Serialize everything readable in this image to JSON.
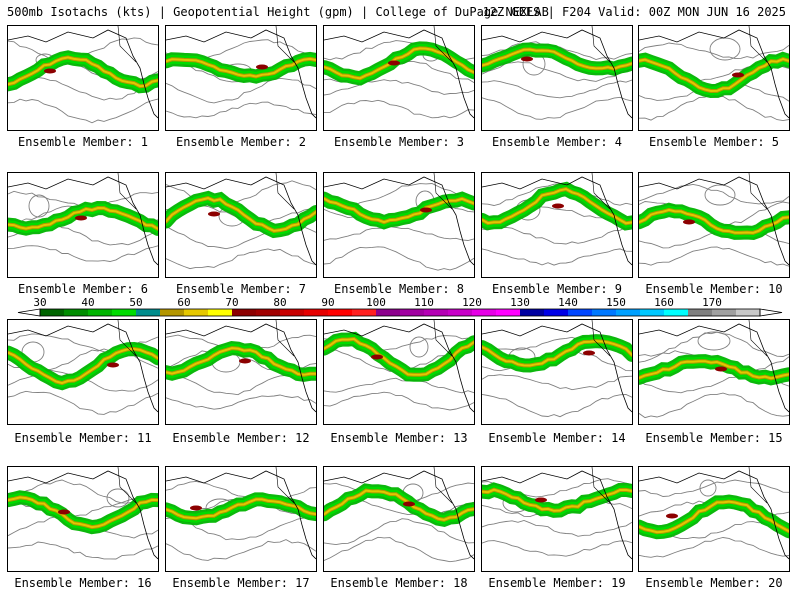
{
  "header": {
    "left": "500mb Isotachs (kts) | Geopotential Height (gpm) | College of DuPage NEXLAB",
    "right": "12Z GEFS | F204 Valid: 00Z MON JUN 16 2025"
  },
  "panels": [
    {
      "label": "Ensemble Member: 1"
    },
    {
      "label": "Ensemble Member: 2"
    },
    {
      "label": "Ensemble Member: 3"
    },
    {
      "label": "Ensemble Member: 4"
    },
    {
      "label": "Ensemble Member: 5"
    },
    {
      "label": "Ensemble Member: 6"
    },
    {
      "label": "Ensemble Member: 7"
    },
    {
      "label": "Ensemble Member: 8"
    },
    {
      "label": "Ensemble Member: 9"
    },
    {
      "label": "Ensemble Member: 10"
    },
    {
      "label": "Ensemble Member: 11"
    },
    {
      "label": "Ensemble Member: 12"
    },
    {
      "label": "Ensemble Member: 13"
    },
    {
      "label": "Ensemble Member: 14"
    },
    {
      "label": "Ensemble Member: 15"
    },
    {
      "label": "Ensemble Member: 16"
    },
    {
      "label": "Ensemble Member: 17"
    },
    {
      "label": "Ensemble Member: 18"
    },
    {
      "label": "Ensemble Member: 19"
    },
    {
      "label": "Ensemble Member: 20"
    }
  ],
  "colorbar": {
    "labels": [
      "30",
      "40",
      "50",
      "60",
      "70",
      "80",
      "90",
      "100",
      "110",
      "120",
      "130",
      "140",
      "150",
      "160",
      "170"
    ],
    "colors": [
      "#006400",
      "#008c00",
      "#00b400",
      "#00dc00",
      "#008c8c",
      "#b49600",
      "#e6c800",
      "#ffff00",
      "#8c0000",
      "#a00000",
      "#c80000",
      "#e60000",
      "#ff0000",
      "#ff2020",
      "#8c008c",
      "#a000a0",
      "#b400b4",
      "#c800c8",
      "#e600e6",
      "#ff00ff",
      "#0000a0",
      "#0000e6",
      "#0046ff",
      "#0078ff",
      "#00a0ff",
      "#00c8ff",
      "#00ffff",
      "#808080",
      "#a0a0a0",
      "#c8c8c8"
    ]
  }
}
